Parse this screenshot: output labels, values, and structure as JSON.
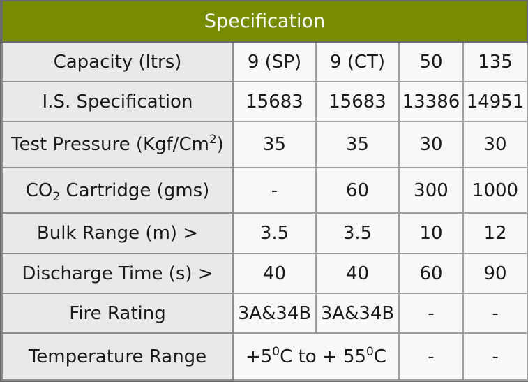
{
  "title": "Specification",
  "rows": [
    {
      "label": "Capacity (ltrs)",
      "values": [
        "9 (SP)",
        "9 (CT)",
        "50",
        "135"
      ]
    },
    {
      "label": "I.S. Specification",
      "values": [
        "15683",
        "15683",
        "13386",
        "14951"
      ]
    },
    {
      "label_pre": "Test Pressure (Kgf/Cm",
      "label_sup": "2",
      "label_post": ")",
      "values": [
        "35",
        "35",
        "30",
        "30"
      ]
    },
    {
      "label_pre": "CO",
      "label_sub": "2",
      "label_post": " Cartridge (gms)",
      "values": [
        "-",
        "60",
        "300",
        "1000"
      ]
    },
    {
      "label": "Bulk Range (m) >",
      "values": [
        "3.5",
        "3.5",
        "10",
        "12"
      ]
    },
    {
      "label": "Discharge Time (s) >",
      "values": [
        "40",
        "40",
        "60",
        "90"
      ]
    },
    {
      "label": "Fire Rating",
      "values": [
        "3A&34B",
        "3A&34B",
        "-",
        "-"
      ]
    },
    {
      "label": "Temperature Range",
      "temp": {
        "p1": "+5",
        "s1": "0",
        "p2": "C to + 55",
        "s2": "0",
        "p3": "C"
      },
      "values": [
        "-",
        "-"
      ]
    }
  ],
  "colors": {
    "header_bg": "#778c00",
    "label_bg": "#e9e9e9",
    "cell_bg": "#f8f8f8",
    "border": "#a0a0a0"
  }
}
